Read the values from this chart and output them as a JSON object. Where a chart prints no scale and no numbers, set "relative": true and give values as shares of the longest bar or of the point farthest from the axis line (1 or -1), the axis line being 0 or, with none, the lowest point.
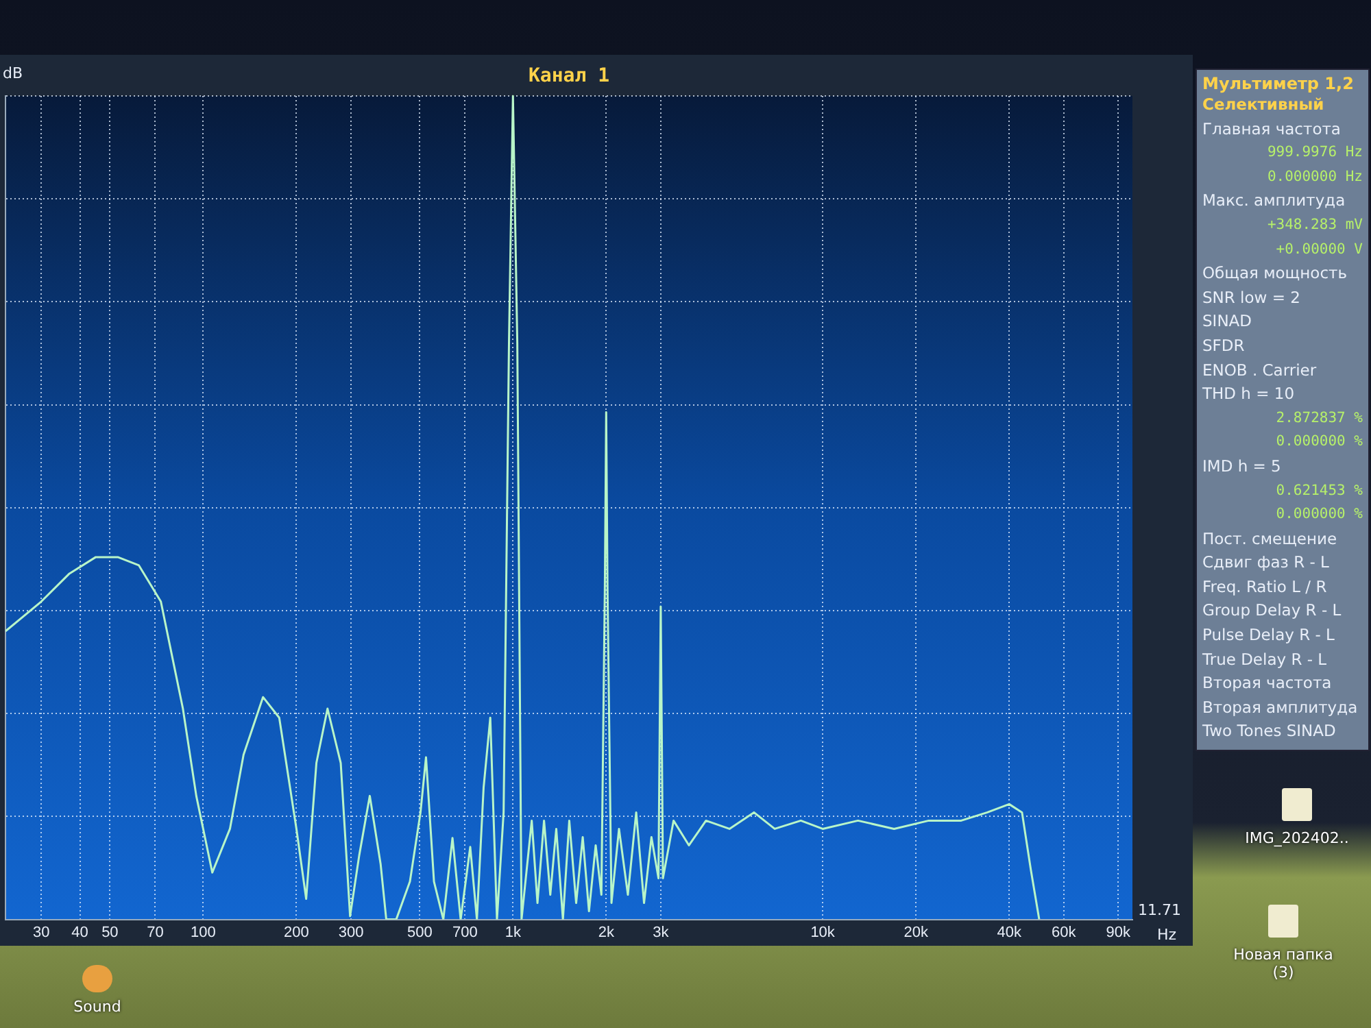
{
  "chart_data": [
    {
      "type": "line",
      "title": "Канал 1",
      "xlabel": "Hz",
      "ylabel": "dB",
      "relative": true,
      "log": "x",
      "grid": true,
      "legend": false,
      "tick_labels": "x",
      "xlim": [
        23,
        100000
      ],
      "xticks": [
        30,
        40,
        50,
        70,
        100,
        200,
        300,
        500,
        700,
        {
          "value": 1000,
          "label": "1k"
        },
        {
          "value": 2000,
          "label": "2k"
        },
        {
          "value": 3000,
          "label": "3k"
        },
        {
          "value": 10000,
          "label": "10k"
        },
        {
          "value": 20000,
          "label": "20k"
        },
        {
          "value": 40000,
          "label": "40k"
        },
        {
          "value": 60000,
          "label": "60k"
        },
        {
          "value": 90000,
          "label": "90k"
        }
      ],
      "annotations": [
        "11.71"
      ],
      "series": [
        {
          "color": "#b8f5c8",
          "x": [
            23,
            30,
            37,
            45,
            53,
            62,
            73,
            86,
            95,
            107,
            122,
            135,
            156,
            176,
            200,
            215,
            232,
            252,
            278,
            298,
            319,
            345,
            374,
            390,
            420,
            465,
            503,
            524,
            556,
            596,
            638,
            678,
            728,
            765,
            804,
            845,
            888,
            933,
            971,
            1000,
            1033,
            1066,
            1150,
            1200,
            1260,
            1320,
            1380,
            1450,
            1520,
            1600,
            1680,
            1760,
            1850,
            1930,
            1980,
            2000,
            2020,
            2080,
            2200,
            2350,
            2500,
            2650,
            2800,
            2950,
            3000,
            3050,
            3300,
            3700,
            4200,
            5000,
            6000,
            7000,
            8500,
            10000,
            13000,
            17000,
            22000,
            28000,
            34000,
            40000,
            44000,
            47000,
            50000
          ],
          "values": [
            0.35,
            0.386,
            0.42,
            0.44,
            0.44,
            0.43,
            0.386,
            0.256,
            0.15,
            0.057,
            0.11,
            0.2,
            0.27,
            0.245,
            0.11,
            0.025,
            0.19,
            0.256,
            0.19,
            0.004,
            0.078,
            0.15,
            0.067,
            0,
            0,
            0.046,
            0.13,
            0.197,
            0.046,
            0,
            0.099,
            0,
            0.088,
            0,
            0.16,
            0.245,
            0,
            0.13,
            0.7,
            1,
            0.7,
            0,
            0.12,
            0.02,
            0.12,
            0.03,
            0.11,
            0,
            0.12,
            0.02,
            0.1,
            0.01,
            0.09,
            0.03,
            0.4,
            0.616,
            0.4,
            0.02,
            0.11,
            0.03,
            0.13,
            0.02,
            0.1,
            0.05,
            0.38,
            0.05,
            0.12,
            0.09,
            0.12,
            0.11,
            0.13,
            0.11,
            0.12,
            0.11,
            0.12,
            0.11,
            0.12,
            0.12,
            0.13,
            0.14,
            0.13,
            0.06,
            0
          ]
        }
      ]
    },
    {
      "type": "other",
      "title": "Мультиметр 1,2",
      "annotations": [
        "Селективный",
        "Главная частота",
        "999.9976  Hz",
        "0.000000  Hz",
        "Макс. амплитуда",
        "+348.283 mV",
        "+0.00000  V",
        "Общая мощность",
        "SNR     low = 2",
        "SINAD",
        "SFDR",
        "ENOB . Carrier",
        "THD       h = 10",
        "2.872837 %",
        "0.000000 %",
        "IMD       h =  5",
        "0.621453 %",
        "0.000000 %",
        "Пост. смещение",
        "Сдвиг фаз R - L",
        "Freq. Ratio  L / R",
        "Group Delay R - L",
        "Pulse Delay R - L",
        "True  Delay R - L",
        "Вторая частота",
        "Вторая амплитуда",
        "Two Tones SINAD"
      ]
    },
    {
      "type": "other",
      "annotations": [
        "Sound",
        "IMG_202402..",
        "Новая папка (3)"
      ]
    }
  ]
}
